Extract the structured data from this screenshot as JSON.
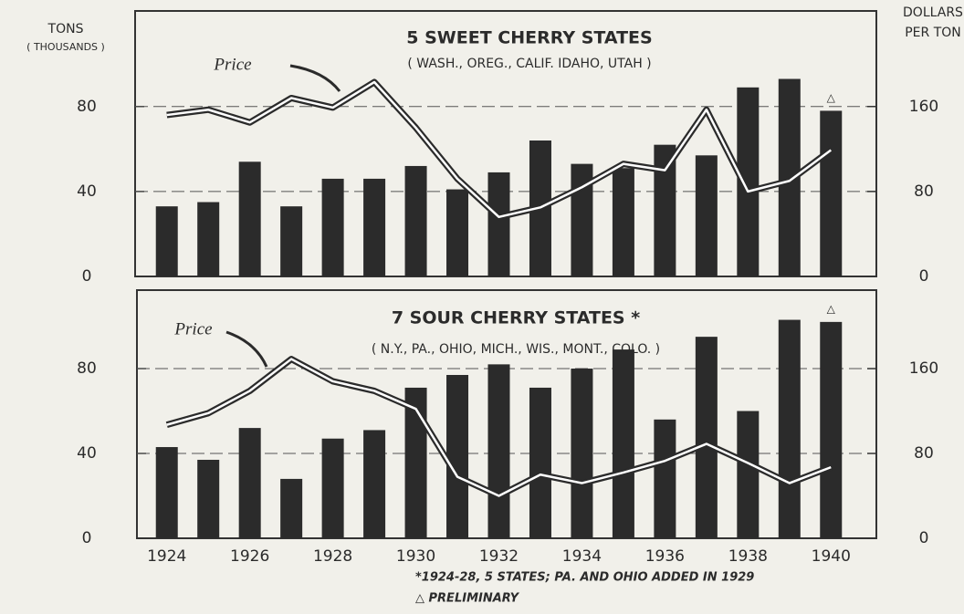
{
  "chart_data": [
    {
      "type": "bar_line",
      "title": "5 SWEET CHERRY STATES",
      "subtitle": "( WASH., OREG., CALIF. IDAHO, UTAH )",
      "ylabel": "TONS",
      "ylabel_sub": "( THOUSANDS )",
      "y2label": "DOLLARS",
      "y2label_sub": "PER TON",
      "annotation": "Price",
      "preliminary_marker": "△",
      "series": [
        {
          "color": "#2b2b2b",
          "values": [
            33,
            35,
            54,
            33,
            46,
            46,
            52,
            41,
            49,
            64,
            53,
            51,
            62,
            57,
            89,
            93,
            78
          ]
        },
        {
          "name": "Price",
          "color": "#ffffff",
          "axis": "y2",
          "values": [
            152,
            157,
            145,
            168,
            159,
            183,
            140,
            92,
            56,
            65,
            84,
            106,
            100,
            157,
            80,
            90,
            119
          ]
        }
      ],
      "ylim": [
        0,
        125
      ],
      "yticks": [
        0,
        40,
        80
      ],
      "y2lim": [
        0,
        250
      ],
      "y2ticks": [
        0,
        80,
        160
      ],
      "grid": true
    },
    {
      "type": "bar_line",
      "title": "7 SOUR CHERRY STATES *",
      "subtitle": "( N.Y., PA., OHIO, MICH., WIS., MONT., COLO. )",
      "annotation": "Price",
      "preliminary_marker": "△",
      "categories": [
        "1924",
        null,
        "1926",
        null,
        "1928",
        null,
        "1930",
        null,
        "1932",
        null,
        "1934",
        null,
        "1936",
        null,
        "1938",
        null,
        "1940"
      ],
      "series": [
        {
          "color": "#2b2b2b",
          "values": [
            43,
            37,
            52,
            28,
            47,
            51,
            71,
            77,
            82,
            71,
            80,
            89,
            56,
            95,
            60,
            103,
            102
          ]
        },
        {
          "name": "Price",
          "color": "#ffffff",
          "axis": "y2",
          "values": [
            107,
            118,
            139,
            169,
            148,
            139,
            122,
            58,
            40,
            60,
            52,
            62,
            73,
            89,
            71,
            52,
            67
          ]
        }
      ],
      "ylim": [
        0,
        117
      ],
      "yticks": [
        0,
        40,
        80
      ],
      "y2lim": [
        0,
        234
      ],
      "y2ticks": [
        0,
        80,
        160
      ],
      "grid": true,
      "notes": [
        "*1924-28, 5 STATES; PA. AND OHIO ADDED IN 1929",
        "△ PRELIMINARY"
      ]
    }
  ]
}
